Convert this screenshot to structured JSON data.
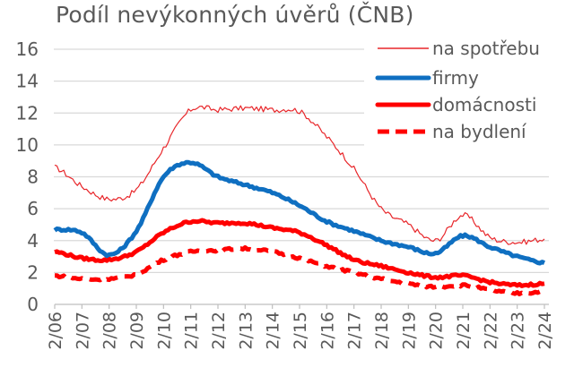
{
  "chart_data": {
    "type": "line",
    "title": "Podíl nevýkonných úvěrů (ČNB)",
    "xlabel": "",
    "ylabel": "",
    "ylim": [
      0,
      16
    ],
    "yticks": [
      0,
      2,
      4,
      6,
      8,
      10,
      12,
      14,
      16
    ],
    "grid": true,
    "legend_position": "upper right",
    "categories": [
      "2/06",
      "2/07",
      "2/08",
      "2/09",
      "2/10",
      "2/11",
      "2/12",
      "2/13",
      "2/14",
      "2/15",
      "2/16",
      "2/17",
      "2/18",
      "2/19",
      "2/20",
      "2/21",
      "2/22",
      "2/23",
      "2/24"
    ],
    "series": [
      {
        "name": "na spotřebu",
        "color": "#e8262a",
        "style": "thin",
        "values": [
          8.6,
          7.4,
          6.6,
          7.2,
          9.8,
          12.2,
          12.2,
          12.3,
          12.2,
          12.1,
          10.5,
          8.5,
          6.0,
          5.0,
          4.0,
          5.6,
          4.2,
          3.9,
          4.1
        ]
      },
      {
        "name": "firmy",
        "color": "#0f6fc1",
        "style": "thick",
        "values": [
          4.7,
          4.5,
          3.1,
          4.6,
          8.0,
          8.9,
          8.0,
          7.5,
          7.0,
          6.2,
          5.2,
          4.6,
          4.0,
          3.6,
          3.2,
          4.3,
          3.6,
          3.0,
          2.6
        ]
      },
      {
        "name": "domácnosti",
        "color": "#ff0000",
        "style": "thick",
        "values": [
          3.3,
          2.9,
          2.8,
          3.3,
          4.5,
          5.2,
          5.1,
          5.1,
          4.8,
          4.5,
          3.7,
          2.8,
          2.4,
          2.0,
          1.7,
          1.8,
          1.4,
          1.2,
          1.3
        ]
      },
      {
        "name": "na bydlení",
        "color": "#ff0000",
        "style": "dashed",
        "values": [
          1.8,
          1.6,
          1.6,
          1.9,
          2.8,
          3.3,
          3.4,
          3.5,
          3.3,
          2.9,
          2.4,
          2.0,
          1.6,
          1.3,
          1.1,
          1.2,
          0.9,
          0.7,
          0.8
        ]
      }
    ]
  },
  "legend": {
    "items": [
      {
        "label": "na spotřebu"
      },
      {
        "label": "firmy"
      },
      {
        "label": "domácnosti"
      },
      {
        "label": "na bydlení"
      }
    ]
  }
}
